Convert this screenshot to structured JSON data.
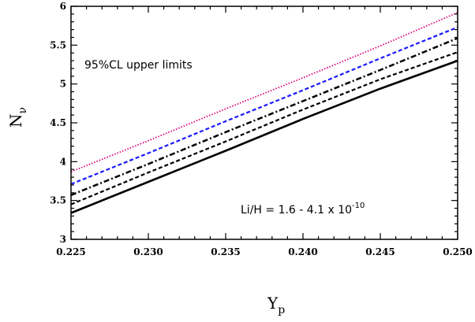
{
  "chart_data": {
    "type": "line",
    "title": "",
    "xlabel": "Y",
    "xlabel_sub": "p",
    "ylabel": "N",
    "ylabel_sub": "ν",
    "xlim": [
      0.225,
      0.25
    ],
    "ylim": [
      3,
      6
    ],
    "xticks": [
      "0.225",
      "0.230",
      "0.235",
      "0.240",
      "0.245",
      "0.250"
    ],
    "yticks": [
      "3",
      "3.5",
      "4",
      "4.5",
      "5",
      "5.5",
      "6"
    ],
    "annotations": {
      "upper": "95%CL upper limits",
      "lower_prefix": "Li/H = 1.6 - 4.1 x 10",
      "lower_exp": "-10"
    },
    "series": [
      {
        "style": "dotted",
        "color": "#e0007a",
        "x": [
          0.225,
          0.23,
          0.235,
          0.24,
          0.245,
          0.25
        ],
        "values": [
          3.87,
          4.27,
          4.68,
          5.08,
          5.49,
          5.92
        ]
      },
      {
        "style": "dashed",
        "color": "#1a1aff",
        "x": [
          0.225,
          0.23,
          0.235,
          0.24,
          0.245,
          0.25
        ],
        "values": [
          3.71,
          4.11,
          4.52,
          4.92,
          5.33,
          5.73
        ]
      },
      {
        "style": "dashdot",
        "color": "#000000",
        "x": [
          0.225,
          0.23,
          0.235,
          0.24,
          0.245,
          0.25
        ],
        "values": [
          3.57,
          3.97,
          4.38,
          4.78,
          5.18,
          5.59
        ]
      },
      {
        "style": "dashed",
        "color": "#000000",
        "x": [
          0.225,
          0.23,
          0.235,
          0.24,
          0.245,
          0.25
        ],
        "values": [
          3.45,
          3.86,
          4.26,
          4.67,
          5.06,
          5.41
        ]
      },
      {
        "style": "solid",
        "color": "#000000",
        "x": [
          0.225,
          0.23,
          0.235,
          0.24,
          0.245,
          0.25
        ],
        "values": [
          3.34,
          3.74,
          4.14,
          4.55,
          4.94,
          5.3
        ]
      }
    ],
    "grid": false,
    "legend": "none"
  }
}
